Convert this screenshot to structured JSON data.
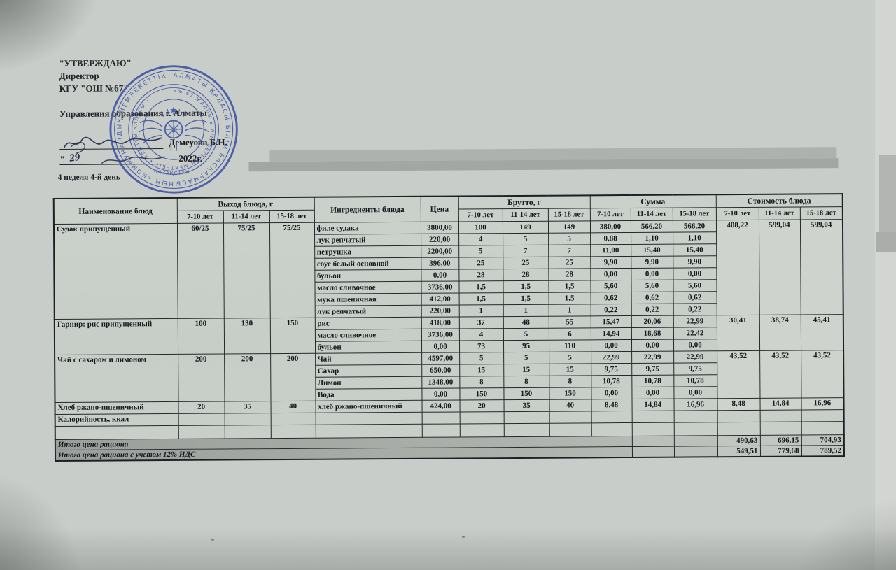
{
  "header": {
    "approve": "\"УТВЕРЖДАЮ\"",
    "director": "Директор",
    "school": "КГУ \"ОШ №67\"",
    "department": "Управления образования г. Алматы",
    "signer_name": "Демеуова Б.Н.",
    "date_quote": "\"",
    "date_day": "29",
    "date_year": "2022г.",
    "week_day": "4 неделя 4-й день"
  },
  "stamp": {
    "color": "#33479f",
    "outer_text": "АЛМАТЫ ҚАЛАСЫ БІЛІМ БАСҚАРМАСЫНЫҢ «КОММУНАЛДЫҚ МЕМЛЕКЕТТІК МЕКЕМЕСІ» •",
    "inner_text": "«№ 67 ЖАЛПЫ БІЛІМ БЕРЕТІН МЕКТЕБІ» • АЛМАТЫ ҚАЛАСЫ •",
    "ribbon_text": "ҚАЗАҚСТАН"
  },
  "table": {
    "headers": {
      "name": "Наименование блюд",
      "output": "Выход блюда, г",
      "ingredients": "Ингредиенты блюда",
      "price": "Цена",
      "brutto": "Брутто, г",
      "sum": "Сумма",
      "cost": "Стоимость блюда",
      "ages": [
        "7-10 лет",
        "11-14 лет",
        "15-18 лет"
      ]
    },
    "dishes": [
      {
        "name": "Судак припущенный",
        "out": [
          "60/25",
          "75/25",
          "75/25"
        ],
        "cost": [
          "408,22",
          "599,04",
          "599,04"
        ],
        "ingredients": [
          [
            "филе судака",
            "3800,00",
            "100",
            "149",
            "149",
            "380,00",
            "566,20",
            "566,20"
          ],
          [
            "лук репчатый",
            "220,00",
            "4",
            "5",
            "5",
            "0,88",
            "1,10",
            "1,10"
          ],
          [
            "петрушка",
            "2200,00",
            "5",
            "7",
            "7",
            "11,00",
            "15,40",
            "15,40"
          ],
          [
            "соус белый основной",
            "396,00",
            "25",
            "25",
            "25",
            "9,90",
            "9,90",
            "9,90"
          ],
          [
            "бульон",
            "0,00",
            "28",
            "28",
            "28",
            "0,00",
            "0,00",
            "0,00"
          ],
          [
            "масло сливочное",
            "3736,00",
            "1,5",
            "1,5",
            "1,5",
            "5,60",
            "5,60",
            "5,60"
          ],
          [
            "мука пшеничная",
            "412,00",
            "1,5",
            "1,5",
            "1,5",
            "0,62",
            "0,62",
            "0,62"
          ],
          [
            "лук репчатый",
            "220,00",
            "1",
            "1",
            "1",
            "0,22",
            "0,22",
            "0,22"
          ]
        ]
      },
      {
        "name": "Гарнир: рис припущенный",
        "out": [
          "100",
          "130",
          "150"
        ],
        "cost": [
          "30,41",
          "38,74",
          "45,41"
        ],
        "ingredients": [
          [
            "рис",
            "418,00",
            "37",
            "48",
            "55",
            "15,47",
            "20,06",
            "22,99"
          ],
          [
            "масло сливочное",
            "3736,00",
            "4",
            "5",
            "6",
            "14,94",
            "18,68",
            "22,42"
          ],
          [
            "бульон",
            "0,00",
            "73",
            "95",
            "110",
            "0,00",
            "0,00",
            "0,00"
          ]
        ]
      },
      {
        "name": "Чай с сахаром и лимоном",
        "out": [
          "200",
          "200",
          "200"
        ],
        "cost": [
          "43,52",
          "43,52",
          "43,52"
        ],
        "ingredients": [
          [
            "Чай",
            "4597,00",
            "5",
            "5",
            "5",
            "22,99",
            "22,99",
            "22,99"
          ],
          [
            "Сахар",
            "650,00",
            "15",
            "15",
            "15",
            "9,75",
            "9,75",
            "9,75"
          ],
          [
            "Лимон",
            "1348,00",
            "8",
            "8",
            "8",
            "10,78",
            "10,78",
            "10,78"
          ],
          [
            "Вода",
            "0,00",
            "150",
            "150",
            "150",
            "0,00",
            "0,00",
            "0,00"
          ]
        ]
      },
      {
        "name": "Хлеб ржано-пшеничный",
        "out": [
          "20",
          "35",
          "40"
        ],
        "cost": [
          "8,48",
          "14,84",
          "16,96"
        ],
        "ingredients": [
          [
            "хлеб ржано-пшеничный",
            "424,00",
            "20",
            "35",
            "40",
            "8,48",
            "14,84",
            "16,96"
          ]
        ]
      }
    ],
    "footer": {
      "calories_label": "Калорийность, ккал",
      "total_label": "Итого цена рациона",
      "total_values": [
        "490,63",
        "696,15",
        "704,93"
      ],
      "total_vat_label": "Итого цена рациона с учетом 12% НДС",
      "total_vat_values": [
        "549,51",
        "779,68",
        "789,52"
      ]
    }
  }
}
